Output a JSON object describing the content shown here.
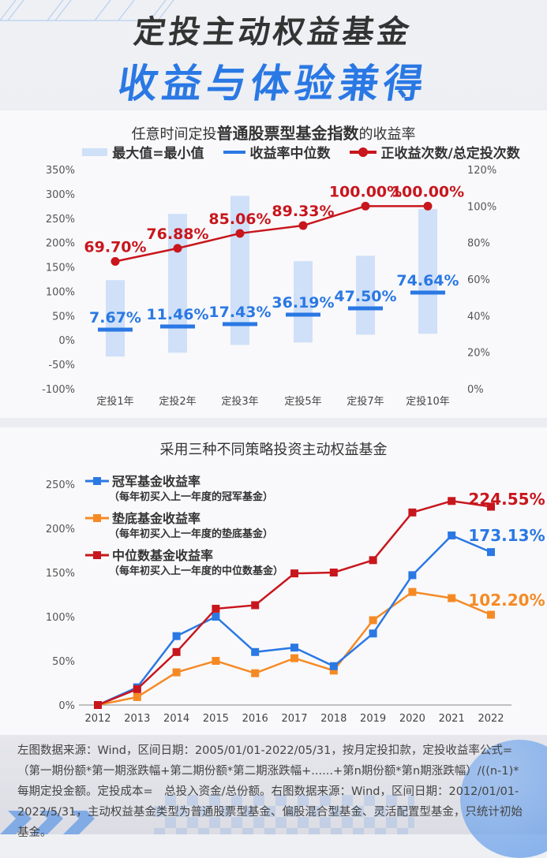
{
  "header": {
    "title_line1": "定投主动权益基金",
    "title_line2": "收益与体验兼得"
  },
  "colors": {
    "blue": "#2a78e4",
    "red": "#c8161d",
    "orange": "#f58a25",
    "bar_light_blue": "#cfe0f8",
    "text_dark": "#333333"
  },
  "chart1": {
    "title_prefix": "任意时间定投",
    "title_bold": "普通股票型基金指数",
    "title_suffix": "的收益率",
    "legend": [
      "最大值=最小值",
      "收益率中位数",
      "正收益次数/总定投次数"
    ]
  },
  "chart2": {
    "title": "采用三种不同策略投资主动权益基金",
    "legend": [
      {
        "name": "冠军基金收益率",
        "note": "（每年初买入上一年度的冠军基金）"
      },
      {
        "name": "垫底基金收益率",
        "note": "（每年初买入上一年度的垫底基金）"
      },
      {
        "name": "中位数基金收益率",
        "note": "（每年初买入上一年度的中位数基金）"
      }
    ]
  },
  "chart_data": [
    {
      "type": "bar",
      "title": "任意时间定投普通股票型基金指数的收益率",
      "categories": [
        "定投1年",
        "定投2年",
        "定投3年",
        "定投5年",
        "定投7年",
        "定投10年"
      ],
      "left_axis": {
        "ticks": [
          "350%",
          "300%",
          "250%",
          "200%",
          "150%",
          "100%",
          "50%",
          "0%",
          "-50%",
          "-100%"
        ],
        "ylim": [
          -100,
          350
        ]
      },
      "right_axis": {
        "ticks": [
          "120%",
          "100%",
          "80%",
          "60%",
          "40%",
          "20%",
          "0%"
        ],
        "ylim": [
          0,
          120
        ]
      },
      "series": [
        {
          "name": "最大值=最小值",
          "kind": "floating_bar",
          "max": [
            123,
            259,
            296,
            162,
            173,
            269
          ],
          "min": [
            -34,
            -26,
            -10,
            -5,
            11,
            13
          ]
        },
        {
          "name": "收益率中位数",
          "kind": "marker_line",
          "values": [
            7.67,
            11.46,
            17.43,
            36.19,
            47.5,
            74.64
          ],
          "labels": [
            "7.67%",
            "11.46%",
            "17.43%",
            "36.19%",
            "47.50%",
            "74.64%"
          ]
        },
        {
          "name": "正收益次数/总定投次数",
          "kind": "line",
          "axis": "right",
          "values": [
            69.7,
            76.88,
            85.06,
            89.33,
            100.0,
            100.0
          ],
          "labels": [
            "69.70%",
            "76.88%",
            "85.06%",
            "89.33%",
            "100.00%",
            "100.00%"
          ]
        }
      ],
      "grid": false,
      "legend_position": "top"
    },
    {
      "type": "line",
      "title": "采用三种不同策略投资主动权益基金",
      "x": [
        "2012",
        "2013",
        "2014",
        "2015",
        "2016",
        "2017",
        "2018",
        "2019",
        "2020",
        "2021",
        "2022"
      ],
      "y_ticks": [
        "250%",
        "200%",
        "150%",
        "100%",
        "50%",
        "0%"
      ],
      "ylim": [
        0,
        250
      ],
      "series": [
        {
          "name": "冠军基金收益率",
          "color": "#2a78e4",
          "values": [
            0,
            20,
            78,
            100,
            60,
            65,
            44,
            81,
            147,
            192,
            173.13
          ],
          "end_label": "173.13%"
        },
        {
          "name": "垫底基金收益率",
          "color": "#f58a25",
          "values": [
            0,
            9,
            37,
            50,
            36,
            53,
            39,
            96,
            128,
            121,
            102.2
          ],
          "end_label": "102.20%"
        },
        {
          "name": "中位数基金收益率",
          "color": "#c8161d",
          "values": [
            0,
            18,
            60,
            109,
            113,
            149,
            150,
            164,
            218,
            231,
            224.55
          ],
          "end_label": "224.55%"
        }
      ],
      "grid": false,
      "legend_position": "top-left"
    }
  ],
  "footer": {
    "text": "左图数据来源：Wind，区间日期：2005/01/01-2022/05/31，按月定投扣款，定投收益率公式=（第一期份额*第一期涨跌幅+第二期份额*第二期涨跌幅+......+第n期份额*第n期涨跌幅）/((n-1)*每期定投金额。定投成本=　总投入资金/总份额。右图数据来源：Wind，区间日期：2012/01/01-2022/5/31，主动权益基金类型为普通股票型基金、偏股混合型基金、灵活配置型基金，只统计初始基金。"
  }
}
